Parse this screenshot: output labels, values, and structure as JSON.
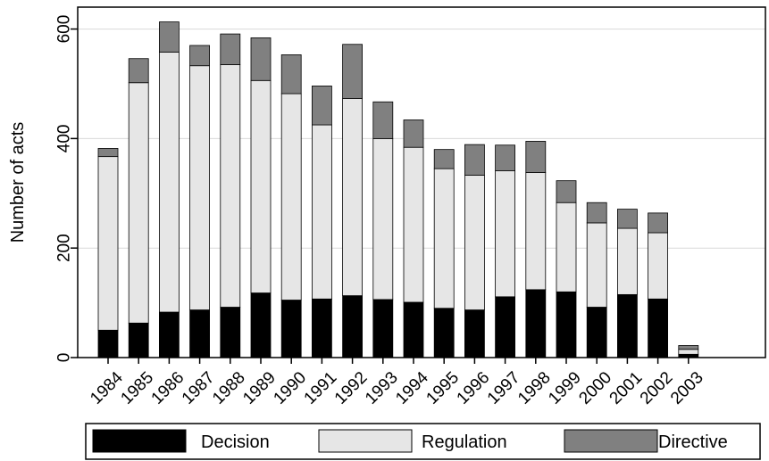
{
  "chart_data": {
    "type": "bar",
    "stacked": true,
    "title": "",
    "xlabel": "",
    "ylabel": "Number of acts",
    "ylim": [
      0,
      640
    ],
    "yticks": [
      "0",
      "200",
      "400",
      "600"
    ],
    "categories": [
      "1984",
      "1985",
      "1986",
      "1987",
      "1988",
      "1989",
      "1990",
      "1991",
      "1992",
      "1993",
      "1994",
      "1995",
      "1996",
      "1997",
      "1998",
      "1999",
      "2000",
      "2001",
      "2002",
      "2003"
    ],
    "series": [
      {
        "name": "Decision",
        "color": "#000000",
        "values": [
          50,
          63,
          83,
          87,
          92,
          118,
          105,
          107,
          113,
          106,
          101,
          90,
          87,
          111,
          124,
          120,
          92,
          115,
          107,
          6
        ]
      },
      {
        "name": "Regulation",
        "color": "#e6e6e6",
        "values": [
          317,
          439,
          475,
          446,
          443,
          388,
          377,
          318,
          360,
          294,
          283,
          255,
          246,
          230,
          214,
          163,
          154,
          121,
          121,
          9
        ]
      },
      {
        "name": "Directive",
        "color": "#808080",
        "values": [
          15,
          44,
          55,
          37,
          56,
          78,
          71,
          71,
          99,
          67,
          50,
          35,
          56,
          47,
          57,
          40,
          37,
          35,
          36,
          7
        ]
      }
    ],
    "grid": true,
    "legend_position": "bottom"
  }
}
